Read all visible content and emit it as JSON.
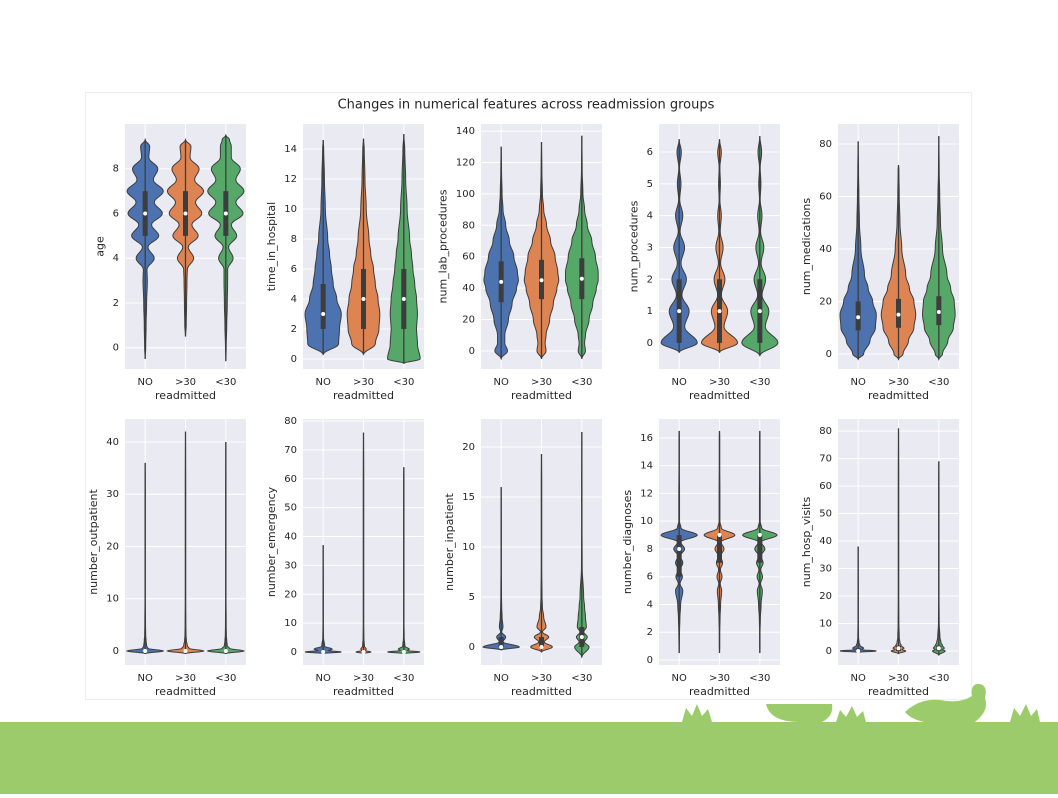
{
  "title": "Changes in numerical features across readmission groups",
  "chart_data": [
    {
      "type": "violin",
      "ylabel": "age",
      "xlabel": "readmitted",
      "categories": [
        "NO",
        ">30",
        "<30"
      ],
      "colors": [
        "#4c72b0",
        "#dd8452",
        "#55a868"
      ],
      "grid": true,
      "ylim": [
        -0.95,
        10.0
      ],
      "yticks": [
        0,
        2,
        4,
        6,
        8
      ],
      "density_y": [
        -0.5,
        0,
        1,
        2,
        3,
        3.5,
        4,
        4.5,
        5,
        5.5,
        6,
        6.5,
        7,
        7.5,
        8,
        8.5,
        9,
        9.3
      ],
      "violins": [
        {
          "min": -0.5,
          "q1": 5,
          "median": 6,
          "q3": 7,
          "max": 9.3,
          "density": [
            0,
            0.03,
            0.05,
            0.08,
            0.12,
            0.1,
            0.5,
            0.15,
            0.75,
            0.35,
            0.95,
            0.5,
            1.0,
            0.45,
            0.7,
            0.2,
            0.25,
            0
          ]
        },
        {
          "min": 0.5,
          "q1": 5,
          "median": 6,
          "q3": 7,
          "max": 9.3,
          "density": [
            0,
            0.02,
            0.04,
            0.06,
            0.08,
            0.1,
            0.45,
            0.15,
            0.7,
            0.35,
            0.9,
            0.55,
            1.0,
            0.5,
            0.75,
            0.25,
            0.3,
            0
          ]
        },
        {
          "min": -0.6,
          "q1": 5,
          "median": 6,
          "q3": 7,
          "max": 9.5,
          "density": [
            0,
            0.02,
            0.05,
            0.08,
            0.1,
            0.1,
            0.4,
            0.15,
            0.6,
            0.3,
            0.95,
            0.55,
            1.0,
            0.55,
            0.8,
            0.3,
            0.3,
            0.2
          ]
        }
      ]
    },
    {
      "type": "violin",
      "ylabel": "time_in_hospital",
      "xlabel": "readmitted",
      "categories": [
        "NO",
        ">30",
        "<30"
      ],
      "colors": [
        "#4c72b0",
        "#dd8452",
        "#55a868"
      ],
      "grid": true,
      "ylim": [
        -0.67,
        15.67
      ],
      "yticks": [
        0,
        2,
        4,
        6,
        8,
        10,
        12,
        14
      ],
      "density_y": [
        0,
        1,
        2,
        3,
        4,
        5,
        6,
        7,
        8,
        10,
        12,
        14
      ],
      "violins": [
        {
          "min": 0.3,
          "q1": 2,
          "median": 3,
          "q3": 5,
          "max": 14.6,
          "density": [
            0.5,
            0.85,
            0.9,
            1.0,
            0.75,
            0.55,
            0.45,
            0.35,
            0.25,
            0.12,
            0.07,
            0.03
          ]
        },
        {
          "min": 0.3,
          "q1": 2,
          "median": 4,
          "q3": 6,
          "max": 14.7,
          "density": [
            0.4,
            0.65,
            0.85,
            0.9,
            0.8,
            0.65,
            0.55,
            0.4,
            0.3,
            0.15,
            0.08,
            0.04
          ]
        },
        {
          "min": -0.3,
          "q1": 2,
          "median": 4,
          "q3": 6,
          "max": 15,
          "density": [
            0.9,
            0.75,
            0.7,
            0.75,
            0.7,
            0.6,
            0.5,
            0.42,
            0.32,
            0.18,
            0.1,
            0.05
          ]
        }
      ]
    },
    {
      "type": "violin",
      "ylabel": "num_lab_procedures",
      "xlabel": "readmitted",
      "categories": [
        "NO",
        ">30",
        "<30"
      ],
      "colors": [
        "#4c72b0",
        "#dd8452",
        "#55a868"
      ],
      "grid": true,
      "ylim": [
        -11.5,
        144.5
      ],
      "yticks": [
        0,
        20,
        40,
        60,
        80,
        100,
        120,
        140
      ],
      "density_y": [
        0,
        5,
        10,
        20,
        30,
        40,
        45,
        50,
        60,
        70,
        80,
        90,
        100,
        115
      ],
      "violins": [
        {
          "min": -5,
          "q1": 31,
          "median": 44,
          "q3": 57,
          "max": 130,
          "density": [
            0.35,
            0.2,
            0.2,
            0.4,
            0.6,
            0.85,
            0.95,
            0.9,
            0.7,
            0.45,
            0.25,
            0.1,
            0.05,
            0.02
          ]
        },
        {
          "min": -5,
          "q1": 33,
          "median": 45,
          "q3": 58,
          "max": 133,
          "density": [
            0.25,
            0.2,
            0.25,
            0.45,
            0.65,
            0.85,
            0.95,
            0.9,
            0.75,
            0.5,
            0.28,
            0.12,
            0.05,
            0.02
          ]
        },
        {
          "min": -5,
          "q1": 33,
          "median": 46,
          "q3": 59,
          "max": 137,
          "density": [
            0.2,
            0.15,
            0.2,
            0.4,
            0.6,
            0.8,
            0.9,
            0.9,
            0.75,
            0.55,
            0.3,
            0.15,
            0.06,
            0.02
          ]
        }
      ]
    },
    {
      "type": "violin",
      "ylabel": "num_procedures",
      "xlabel": "readmitted",
      "categories": [
        "NO",
        ">30",
        "<30"
      ],
      "colors": [
        "#4c72b0",
        "#dd8452",
        "#55a868"
      ],
      "grid": true,
      "ylim": [
        -0.82,
        6.88
      ],
      "yticks": [
        0,
        1,
        2,
        3,
        4,
        5,
        6
      ],
      "density_y": [
        0,
        0.5,
        1,
        1.5,
        2,
        2.5,
        3,
        3.5,
        4,
        4.5,
        5,
        5.5,
        6
      ],
      "violins": [
        {
          "min": -0.3,
          "q1": 0,
          "median": 1,
          "q3": 2,
          "max": 6.4,
          "density": [
            1.0,
            0.3,
            0.55,
            0.15,
            0.4,
            0.1,
            0.3,
            0.05,
            0.2,
            0.03,
            0.1,
            0.02,
            0.12
          ]
        },
        {
          "min": -0.3,
          "q1": 0,
          "median": 1,
          "q3": 2,
          "max": 6.4,
          "density": [
            1.0,
            0.25,
            0.45,
            0.1,
            0.3,
            0.06,
            0.2,
            0.04,
            0.1,
            0.02,
            0.05,
            0.02,
            0.1
          ]
        },
        {
          "min": -0.4,
          "q1": 0,
          "median": 1,
          "q3": 2,
          "max": 6.5,
          "density": [
            1.0,
            0.3,
            0.5,
            0.12,
            0.32,
            0.07,
            0.22,
            0.04,
            0.12,
            0.02,
            0.06,
            0.02,
            0.1
          ]
        }
      ]
    },
    {
      "type": "violin",
      "ylabel": "num_medications",
      "xlabel": "readmitted",
      "categories": [
        "NO",
        ">30",
        "<30"
      ],
      "colors": [
        "#4c72b0",
        "#dd8452",
        "#55a868"
      ],
      "grid": true,
      "ylim": [
        -5.7,
        87.6
      ],
      "yticks": [
        0,
        20,
        40,
        60,
        80
      ],
      "density_y": [
        0,
        5,
        10,
        15,
        20,
        25,
        30,
        40,
        50,
        60,
        70
      ],
      "violins": [
        {
          "min": -2,
          "q1": 9,
          "median": 14,
          "q3": 20,
          "max": 81,
          "density": [
            0.3,
            0.65,
            0.95,
            1.0,
            0.8,
            0.55,
            0.35,
            0.15,
            0.07,
            0.04,
            0.02
          ]
        },
        {
          "min": -2,
          "q1": 10,
          "median": 15,
          "q3": 21,
          "max": 72,
          "density": [
            0.25,
            0.55,
            0.85,
            0.95,
            0.85,
            0.6,
            0.4,
            0.18,
            0.08,
            0.04,
            0.02
          ]
        },
        {
          "min": -2,
          "q1": 11,
          "median": 16,
          "q3": 22,
          "max": 83,
          "density": [
            0.2,
            0.5,
            0.8,
            0.9,
            0.85,
            0.65,
            0.45,
            0.2,
            0.09,
            0.05,
            0.02
          ]
        }
      ]
    },
    {
      "type": "violin",
      "ylabel": "number_outpatient",
      "xlabel": "readmitted",
      "categories": [
        "NO",
        ">30",
        "<30"
      ],
      "colors": [
        "#4c72b0",
        "#dd8452",
        "#55a868"
      ],
      "grid": true,
      "ylim": [
        -2.68,
        44.4
      ],
      "yticks": [
        0,
        10,
        20,
        30,
        40
      ],
      "density_y": [
        0,
        0.5,
        1,
        2,
        3,
        5,
        10,
        20,
        30
      ],
      "violins": [
        {
          "min": -0.5,
          "q1": 0,
          "median": 0,
          "q3": 0,
          "max": 36,
          "density": [
            1.0,
            0.15,
            0.08,
            0.05,
            0.03,
            0.02,
            0.01,
            0.01,
            0.01
          ]
        },
        {
          "min": -0.5,
          "q1": 0,
          "median": 0,
          "q3": 0,
          "max": 42,
          "density": [
            1.0,
            0.2,
            0.1,
            0.05,
            0.03,
            0.02,
            0.01,
            0.01,
            0.01
          ]
        },
        {
          "min": -0.5,
          "q1": 0,
          "median": 0,
          "q3": 0,
          "max": 40,
          "density": [
            1.0,
            0.2,
            0.08,
            0.05,
            0.03,
            0.02,
            0.01,
            0.01,
            0.01
          ]
        }
      ]
    },
    {
      "type": "violin",
      "ylabel": "number_emergency",
      "xlabel": "readmitted",
      "categories": [
        "NO",
        ">30",
        "<30"
      ],
      "colors": [
        "#4c72b0",
        "#dd8452",
        "#55a868"
      ],
      "grid": true,
      "ylim": [
        -4.5,
        80.7
      ],
      "yticks": [
        0,
        10,
        20,
        30,
        40,
        50,
        60,
        70,
        80
      ],
      "density_y": [
        0,
        0.5,
        1,
        2,
        5,
        10,
        20,
        40,
        60
      ],
      "violins": [
        {
          "min": -0.5,
          "q1": 0,
          "median": 0,
          "q3": 0,
          "max": 37,
          "density": [
            1.0,
            0.3,
            0.5,
            0.08,
            0.02,
            0.01,
            0.01,
            0.01,
            0.01
          ]
        },
        {
          "min": -0.5,
          "q1": 0,
          "median": 0,
          "q3": 0,
          "max": 76,
          "density": [
            0.4,
            0.1,
            0.15,
            0.05,
            0.02,
            0.01,
            0.01,
            0.01,
            0.01
          ]
        },
        {
          "min": -0.5,
          "q1": 0,
          "median": 0,
          "q3": 0,
          "max": 64,
          "density": [
            0.9,
            0.2,
            0.3,
            0.06,
            0.02,
            0.01,
            0.01,
            0.01,
            0.01
          ]
        }
      ]
    },
    {
      "type": "violin",
      "ylabel": "number_inpatient",
      "xlabel": "readmitted",
      "categories": [
        "NO",
        ">30",
        "<30"
      ],
      "colors": [
        "#4c72b0",
        "#dd8452",
        "#55a868"
      ],
      "grid": true,
      "ylim": [
        -1.8,
        22.8
      ],
      "yticks": [
        0,
        5,
        10,
        15,
        20
      ],
      "density_y": [
        0,
        0.5,
        1,
        1.5,
        2,
        3,
        4,
        5,
        8,
        12,
        16
      ],
      "violins": [
        {
          "min": -0.3,
          "q1": 0,
          "median": 0,
          "q3": 1,
          "max": 16,
          "density": [
            1.0,
            0.1,
            0.25,
            0.03,
            0.1,
            0.05,
            0.03,
            0.02,
            0.01,
            0.01,
            0.01
          ]
        },
        {
          "min": -0.5,
          "q1": 0,
          "median": 0,
          "q3": 1,
          "max": 19.3,
          "density": [
            0.6,
            0.15,
            0.4,
            0.05,
            0.25,
            0.12,
            0.05,
            0.03,
            0.01,
            0.01,
            0.01
          ]
        },
        {
          "min": -1,
          "q1": 0,
          "median": 1,
          "q3": 2,
          "max": 21.5,
          "density": [
            0.4,
            0.15,
            0.3,
            0.1,
            0.25,
            0.2,
            0.15,
            0.1,
            0.02,
            0.01,
            0.01
          ]
        }
      ]
    },
    {
      "type": "violin",
      "ylabel": "number_diagnoses",
      "xlabel": "readmitted",
      "categories": [
        "NO",
        ">30",
        "<30"
      ],
      "colors": [
        "#4c72b0",
        "#dd8452",
        "#55a868"
      ],
      "grid": true,
      "ylim": [
        -0.36,
        17.36
      ],
      "yticks": [
        0,
        2,
        4,
        6,
        8,
        10,
        12,
        14,
        16
      ],
      "density_y": [
        1,
        2,
        3,
        4,
        5,
        5.5,
        6,
        6.5,
        7,
        7.5,
        8,
        8.5,
        9,
        9.5,
        10,
        12,
        14,
        16
      ],
      "violins": [
        {
          "min": 0.5,
          "q1": 6,
          "median": 8,
          "q3": 9,
          "max": 16.5,
          "density": [
            0.01,
            0.02,
            0.04,
            0.08,
            0.2,
            0.05,
            0.18,
            0.05,
            0.2,
            0.06,
            0.3,
            0.08,
            1.0,
            0.1,
            0.02,
            0.02,
            0.01,
            0.01
          ]
        },
        {
          "min": 0.5,
          "q1": 7,
          "median": 9,
          "q3": 9,
          "max": 16.5,
          "density": [
            0.01,
            0.01,
            0.03,
            0.06,
            0.12,
            0.04,
            0.14,
            0.05,
            0.17,
            0.06,
            0.25,
            0.08,
            0.85,
            0.1,
            0.02,
            0.02,
            0.01,
            0.01
          ]
        },
        {
          "min": 0.5,
          "q1": 7,
          "median": 9,
          "q3": 9,
          "max": 16.5,
          "density": [
            0.01,
            0.01,
            0.03,
            0.07,
            0.14,
            0.04,
            0.15,
            0.05,
            0.18,
            0.06,
            0.28,
            0.08,
            0.95,
            0.1,
            0.02,
            0.02,
            0.01,
            0.01
          ]
        }
      ]
    },
    {
      "type": "violin",
      "ylabel": "num_hosp_visits",
      "xlabel": "readmitted",
      "categories": [
        "NO",
        ">30",
        "<30"
      ],
      "colors": [
        "#4c72b0",
        "#dd8452",
        "#55a868"
      ],
      "grid": true,
      "ylim": [
        -5.1,
        84.4
      ],
      "yticks": [
        0,
        10,
        20,
        30,
        40,
        50,
        60,
        70,
        80
      ],
      "density_y": [
        0,
        0.5,
        1,
        2,
        3,
        5,
        10,
        20,
        40,
        60
      ],
      "violins": [
        {
          "min": -0.5,
          "q1": 0,
          "median": 0,
          "q3": 1,
          "max": 38,
          "density": [
            1.0,
            0.2,
            0.3,
            0.1,
            0.05,
            0.02,
            0.01,
            0.01,
            0.01,
            0.01
          ]
        },
        {
          "min": -1,
          "q1": 0,
          "median": 1,
          "q3": 2,
          "max": 81,
          "density": [
            0.4,
            0.2,
            0.3,
            0.15,
            0.08,
            0.04,
            0.02,
            0.01,
            0.01,
            0.01
          ]
        },
        {
          "min": -1.5,
          "q1": 0,
          "median": 1,
          "q3": 2,
          "max": 69,
          "density": [
            0.35,
            0.2,
            0.3,
            0.2,
            0.12,
            0.06,
            0.02,
            0.01,
            0.01,
            0.01
          ]
        }
      ]
    }
  ]
}
